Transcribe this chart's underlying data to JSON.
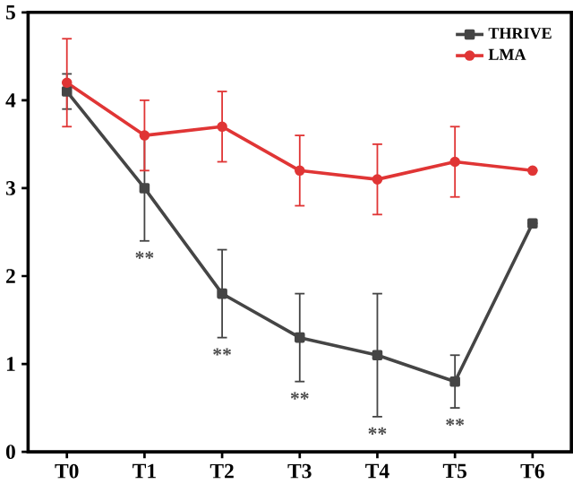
{
  "chart_data": {
    "type": "line",
    "categories": [
      "T0",
      "T1",
      "T2",
      "T3",
      "T4",
      "T5",
      "T6"
    ],
    "series": [
      {
        "name": "THRIVE",
        "color": "#454545",
        "marker": "square",
        "values": [
          4.1,
          3.0,
          1.8,
          1.3,
          1.1,
          0.8,
          2.6
        ],
        "errors": [
          0.2,
          0.6,
          0.5,
          0.5,
          0.7,
          0.3,
          null
        ]
      },
      {
        "name": "LMA",
        "color": "#e03535",
        "marker": "circle",
        "values": [
          4.2,
          3.6,
          3.7,
          3.2,
          3.1,
          3.3,
          3.2
        ],
        "errors": [
          0.5,
          0.4,
          0.4,
          0.4,
          0.4,
          0.4,
          null
        ]
      }
    ],
    "ylim": [
      0,
      5
    ],
    "yticks": [
      0,
      1,
      2,
      3,
      4,
      5
    ],
    "grid": false,
    "legend": "top right",
    "line_style": "solid",
    "annotations": [
      "**",
      "**",
      "**",
      "**",
      "**"
    ]
  }
}
